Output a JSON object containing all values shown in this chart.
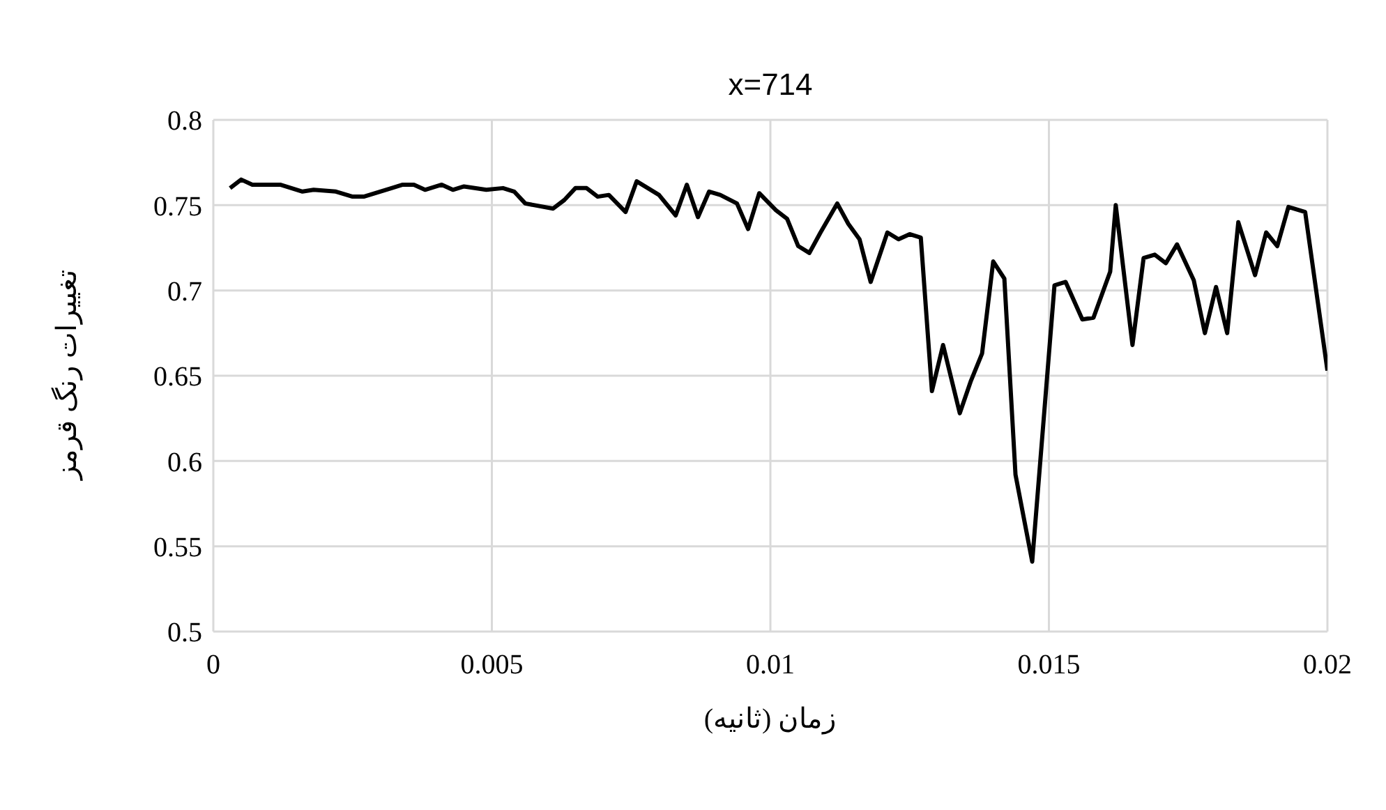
{
  "chart_data": {
    "type": "line",
    "title": "x=714",
    "xlabel": "زمان (ثانیه)",
    "ylabel": "تغییرات رنگ قرمز",
    "x": [
      0.0003,
      0.0005,
      0.0007,
      0.0012,
      0.0016,
      0.0018,
      0.0022,
      0.0025,
      0.0027,
      0.0032,
      0.0034,
      0.0036,
      0.0038,
      0.0041,
      0.0043,
      0.0045,
      0.0049,
      0.0052,
      0.0054,
      0.0056,
      0.0061,
      0.0063,
      0.0065,
      0.0067,
      0.0069,
      0.0071,
      0.0074,
      0.0076,
      0.008,
      0.0083,
      0.0085,
      0.0087,
      0.0089,
      0.0091,
      0.0094,
      0.0096,
      0.0098,
      0.0101,
      0.0103,
      0.0105,
      0.0107,
      0.0109,
      0.0112,
      0.0114,
      0.0116,
      0.0118,
      0.0121,
      0.0123,
      0.0125,
      0.0127,
      0.0129,
      0.0131,
      0.0134,
      0.0136,
      0.0138,
      0.014,
      0.0142,
      0.0144,
      0.0147,
      0.0151,
      0.0153,
      0.0156,
      0.0158,
      0.0161,
      0.0162,
      0.0165,
      0.0167,
      0.0169,
      0.0171,
      0.0173,
      0.0176,
      0.0178,
      0.018,
      0.0182,
      0.0184,
      0.0187,
      0.0189,
      0.0191,
      0.0193,
      0.0196,
      0.02
    ],
    "series": [
      {
        "color": "#000000",
        "values": [
          0.76,
          0.765,
          0.762,
          0.762,
          0.758,
          0.759,
          0.758,
          0.755,
          0.755,
          0.76,
          0.762,
          0.762,
          0.759,
          0.762,
          0.759,
          0.761,
          0.759,
          0.76,
          0.758,
          0.751,
          0.748,
          0.753,
          0.76,
          0.76,
          0.755,
          0.756,
          0.746,
          0.764,
          0.756,
          0.744,
          0.762,
          0.743,
          0.758,
          0.756,
          0.751,
          0.736,
          0.757,
          0.747,
          0.742,
          0.726,
          0.722,
          0.734,
          0.751,
          0.739,
          0.73,
          0.705,
          0.734,
          0.73,
          0.733,
          0.731,
          0.641,
          0.668,
          0.628,
          0.647,
          0.663,
          0.717,
          0.707,
          0.592,
          0.541,
          0.703,
          0.705,
          0.683,
          0.684,
          0.711,
          0.75,
          0.668,
          0.719,
          0.721,
          0.716,
          0.727,
          0.706,
          0.675,
          0.702,
          0.675,
          0.74,
          0.709,
          0.734,
          0.726,
          0.749,
          0.746,
          0.653
        ]
      }
    ],
    "xlim": [
      0,
      0.02
    ],
    "xticks": [
      0,
      0.005,
      0.01,
      0.015,
      0.02
    ],
    "ylim": [
      0.5,
      0.8
    ],
    "yticks": [
      0.5,
      0.55,
      0.6,
      0.65,
      0.7,
      0.75,
      0.8
    ],
    "grid": true,
    "marker": "none",
    "line_style": "solid"
  }
}
